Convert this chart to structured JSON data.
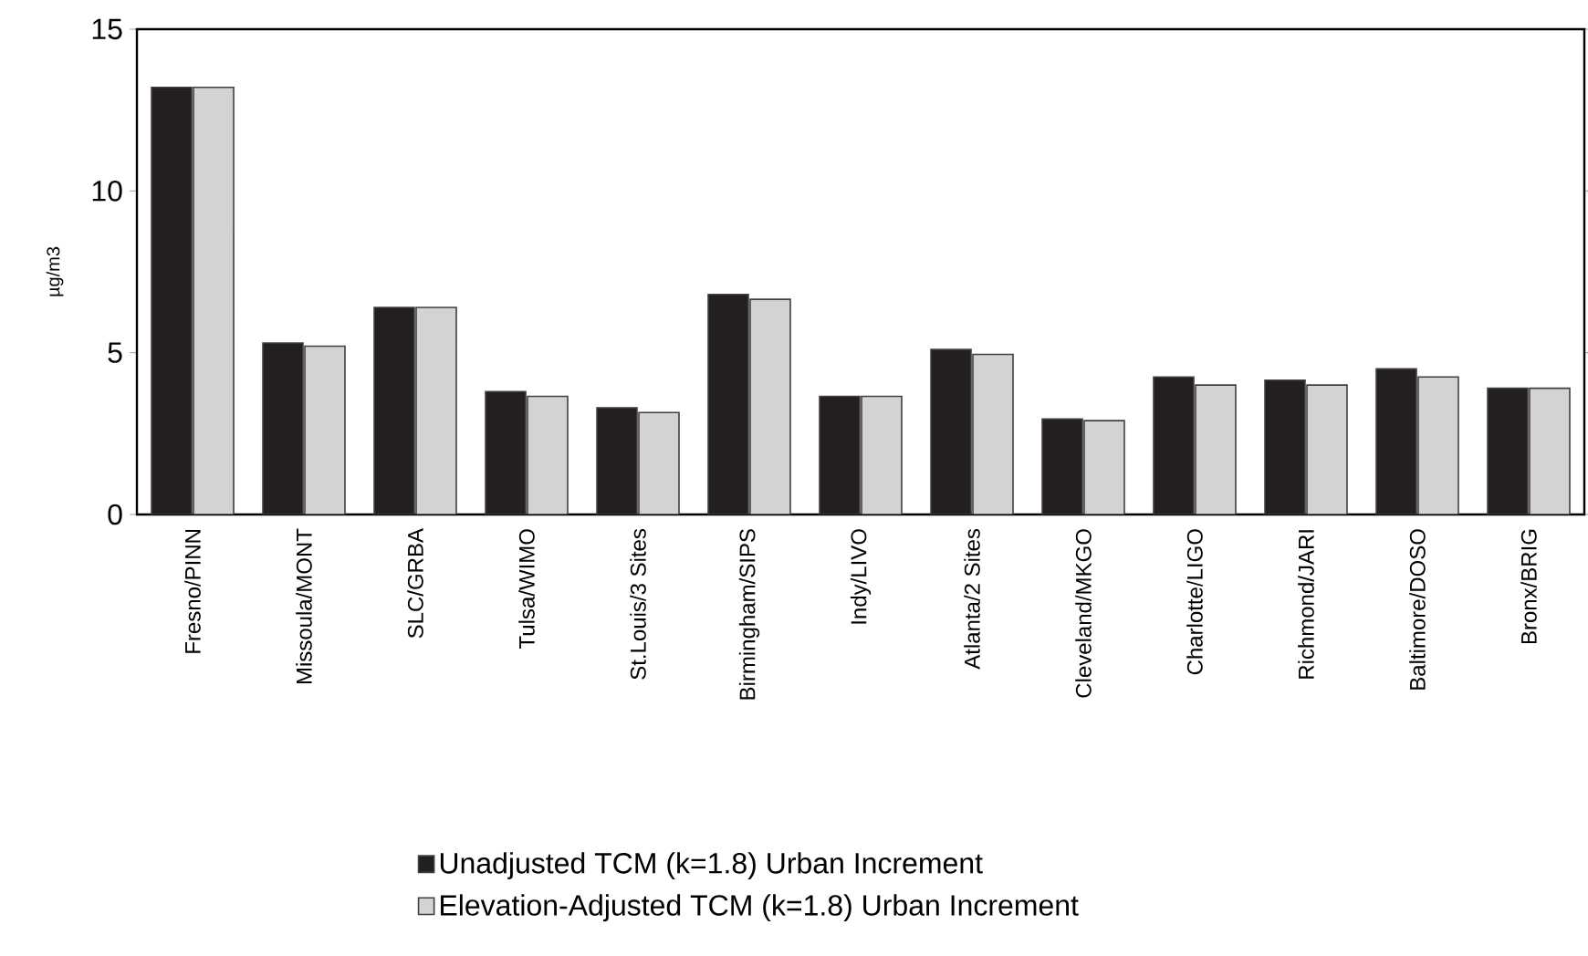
{
  "chart_data": {
    "type": "bar",
    "ylabel": "µg/m3",
    "categories": [
      "Fresno/PINN",
      "Missoula/MONT",
      "SLC/GRBA",
      "Tulsa/WIMO",
      "St.Louis/3 Sites",
      "Birmingham/SIPS",
      "Indy/LIVO",
      "Atlanta/2 Sites",
      "Cleveland/MKGO",
      "Charlotte/LIGO",
      "Richmond/JARI",
      "Baltimore/DOSO",
      "Bronx/BRIG"
    ],
    "series": [
      {
        "name": "Unadjusted TCM (k=1.8) Urban Increment",
        "color": "#231f20",
        "values": [
          13.2,
          5.3,
          6.4,
          3.8,
          3.3,
          6.8,
          3.65,
          5.1,
          2.95,
          4.25,
          4.15,
          4.5,
          3.9
        ]
      },
      {
        "name": "Elevation-Adjusted TCM (k=1.8) Urban Increment",
        "color": "#d3d3d3",
        "values": [
          13.2,
          5.2,
          6.4,
          3.65,
          3.15,
          6.65,
          3.65,
          4.95,
          2.9,
          4.0,
          4.0,
          4.25,
          3.9
        ]
      }
    ],
    "ylim": [
      0,
      15
    ],
    "yticks": [
      0,
      5,
      10,
      15
    ],
    "legend": "bottom"
  }
}
